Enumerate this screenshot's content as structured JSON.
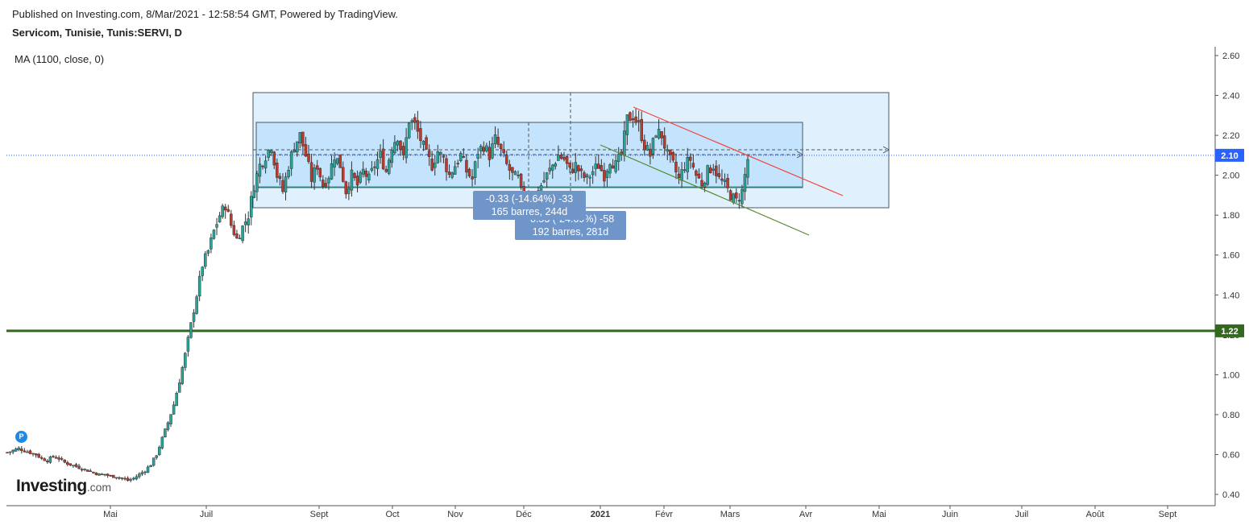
{
  "header": {
    "published": "Published on Investing.com, 8/Mar/2021 - 12:58:54 GMT, Powered by TradingView.",
    "symbol": "Servicom, Tunisie, Tunis:SERVI, D",
    "indicator": "MA (1100, close, 0)"
  },
  "logo": {
    "brand": "Investing",
    "suffix": ".com"
  },
  "marker": {
    "label": "P"
  },
  "measurements": [
    {
      "line1": "-0.33 (-14.64%) -33",
      "line2": "165 barres, 244d"
    },
    {
      "line1": "-0.53 (-24.09%) -58",
      "line2": "192 barres, 281d"
    }
  ],
  "chart_data": {
    "type": "candlestick",
    "y_ticks": [
      "2.60",
      "2.40",
      "2.20",
      "2.00",
      "1.80",
      "1.60",
      "1.40",
      "1.20",
      "1.00",
      "0.80",
      "0.60",
      "0.40"
    ],
    "y_range": [
      0.35,
      2.65
    ],
    "x_ticks": [
      {
        "label": "Mai",
        "bold": false
      },
      {
        "label": "Juil",
        "bold": false
      },
      {
        "label": "Sept",
        "bold": false
      },
      {
        "label": "Oct",
        "bold": false
      },
      {
        "label": "Nov",
        "bold": false
      },
      {
        "label": "Déc",
        "bold": false
      },
      {
        "label": "2021",
        "bold": true
      },
      {
        "label": "Févr",
        "bold": false
      },
      {
        "label": "Mars",
        "bold": false
      },
      {
        "label": "Avr",
        "bold": false
      },
      {
        "label": "Mai",
        "bold": false
      },
      {
        "label": "Juin",
        "bold": false
      },
      {
        "label": "Juil",
        "bold": false
      },
      {
        "label": "Août",
        "bold": false
      },
      {
        "label": "Sept",
        "bold": false
      }
    ],
    "last_price": {
      "value": 2.1,
      "label": "2.10",
      "color": "#2962ff"
    },
    "horizontal_line": {
      "value": 1.22,
      "label": "1.22",
      "color": "#33691e"
    },
    "up_color": "#26a69a",
    "down_color": "#c0392b",
    "price_path": [
      0.61,
      0.62,
      0.63,
      0.62,
      0.61,
      0.6,
      0.58,
      0.57,
      0.59,
      0.58,
      0.56,
      0.55,
      0.54,
      0.53,
      0.52,
      0.51,
      0.5,
      0.5,
      0.49,
      0.49,
      0.48,
      0.47,
      0.48,
      0.5,
      0.52,
      0.55,
      0.6,
      0.68,
      0.76,
      0.85,
      0.97,
      1.1,
      1.25,
      1.4,
      1.55,
      1.62,
      1.72,
      1.8,
      1.85,
      1.75,
      1.68,
      1.74,
      1.8,
      1.95,
      2.05,
      2.1,
      2.15,
      2.0,
      1.92,
      2.05,
      2.15,
      2.2,
      2.1,
      1.98,
      2.05,
      1.95,
      2.0,
      2.1,
      2.05,
      1.92,
      2.0,
      1.95,
      2.02,
      1.98,
      2.05,
      2.1,
      2.02,
      2.15,
      2.2,
      2.08,
      2.28,
      2.25,
      2.18,
      2.1,
      2.05,
      2.12,
      2.08,
      2.0,
      2.05,
      2.1,
      2.02,
      1.98,
      2.12,
      2.15,
      2.1,
      2.18,
      2.12,
      2.05,
      2.0,
      1.98,
      1.85,
      1.88,
      1.9,
      1.95,
      2.0,
      2.05,
      2.1,
      2.08,
      2.02,
      2.05,
      2.0,
      1.98,
      2.02,
      2.05,
      2.0,
      2.08,
      2.05,
      2.1,
      2.28,
      2.3,
      2.25,
      2.15,
      2.1,
      2.22,
      2.2,
      2.1,
      2.05,
      1.98,
      2.05,
      2.08,
      2.0,
      1.96,
      2.02,
      2.05,
      1.98,
      1.95,
      1.9,
      1.87,
      1.92,
      2.08
    ]
  }
}
